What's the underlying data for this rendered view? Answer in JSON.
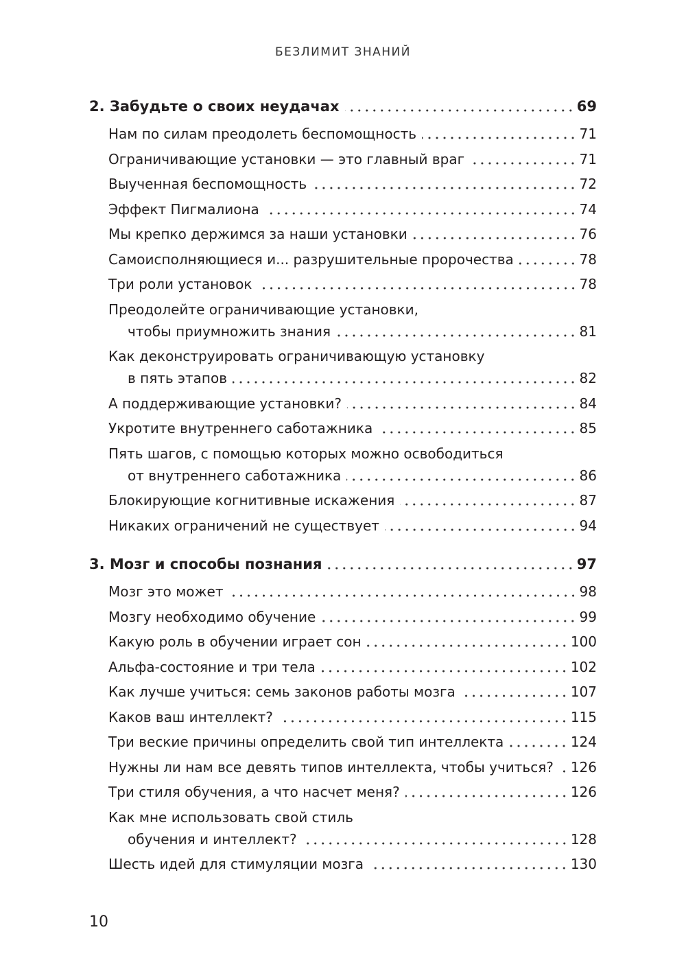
{
  "running_head": "БЕЗЛИМИТ ЗНАНИЙ",
  "page_number": "10",
  "toc": [
    {
      "type": "chapter",
      "lines": [
        "2. Забудьте о своих неудачах"
      ],
      "page": "69"
    },
    {
      "type": "entry",
      "lines": [
        "Нам по силам преодолеть беспомощность"
      ],
      "page": "71"
    },
    {
      "type": "entry",
      "lines": [
        "Ограничивающие установки — это главный враг"
      ],
      "page": "71"
    },
    {
      "type": "entry",
      "lines": [
        "Выученная беспомощность"
      ],
      "page": "72"
    },
    {
      "type": "entry",
      "lines": [
        "Эффект Пигмалиона"
      ],
      "page": "74"
    },
    {
      "type": "entry",
      "lines": [
        "Мы крепко держимся за наши установки"
      ],
      "page": "76"
    },
    {
      "type": "entry",
      "lines": [
        "Самоисполняющиеся и... разрушительные пророчества"
      ],
      "page": "78"
    },
    {
      "type": "entry",
      "lines": [
        "Три роли установок"
      ],
      "page": "78"
    },
    {
      "type": "entry",
      "lines": [
        "Преодолейте ограничивающие установки,",
        "чтобы приумножить знания"
      ],
      "page": "81"
    },
    {
      "type": "entry",
      "lines": [
        "Как деконструировать ограничивающую установку",
        "в пять этапов"
      ],
      "page": "82"
    },
    {
      "type": "entry",
      "lines": [
        "А поддерживающие установки?"
      ],
      "page": "84"
    },
    {
      "type": "entry",
      "lines": [
        "Укротите внутреннего саботажника"
      ],
      "page": "85"
    },
    {
      "type": "entry",
      "lines": [
        "Пять шагов, с помощью которых можно освободиться",
        "от внутреннего саботажника"
      ],
      "page": "86"
    },
    {
      "type": "entry",
      "lines": [
        "Блокирующие когнитивные искажения"
      ],
      "page": "87"
    },
    {
      "type": "entry",
      "lines": [
        "Никаких ограничений не существует"
      ],
      "page": "94"
    },
    {
      "type": "chapter",
      "lines": [
        "3. Мозг и способы познания"
      ],
      "page": "97"
    },
    {
      "type": "entry",
      "lines": [
        "Мозг это может"
      ],
      "page": "98"
    },
    {
      "type": "entry",
      "lines": [
        "Мозгу необходимо обучение"
      ],
      "page": "99"
    },
    {
      "type": "entry",
      "lines": [
        "Какую роль в обучении играет сон"
      ],
      "page": "100"
    },
    {
      "type": "entry",
      "lines": [
        "Альфа-состояние и три тела"
      ],
      "page": "102"
    },
    {
      "type": "entry",
      "lines": [
        "Как лучше учиться: семь законов работы мозга"
      ],
      "page": "107"
    },
    {
      "type": "entry",
      "lines": [
        "Каков ваш интеллект?"
      ],
      "page": "115"
    },
    {
      "type": "entry",
      "lines": [
        "Три веские причины определить свой тип интеллекта"
      ],
      "page": "124"
    },
    {
      "type": "entry",
      "lines": [
        "Нужны ли нам все девять типов интеллекта, чтобы учиться?"
      ],
      "page": "126"
    },
    {
      "type": "entry",
      "lines": [
        "Три стиля обучения, а что насчет меня?"
      ],
      "page": "126"
    },
    {
      "type": "entry",
      "lines": [
        "Как мне использовать свой стиль",
        "обучения и интеллект?"
      ],
      "page": "128"
    },
    {
      "type": "entry",
      "lines": [
        "Шесть идей для стимуляции мозга"
      ],
      "page": "130"
    }
  ]
}
